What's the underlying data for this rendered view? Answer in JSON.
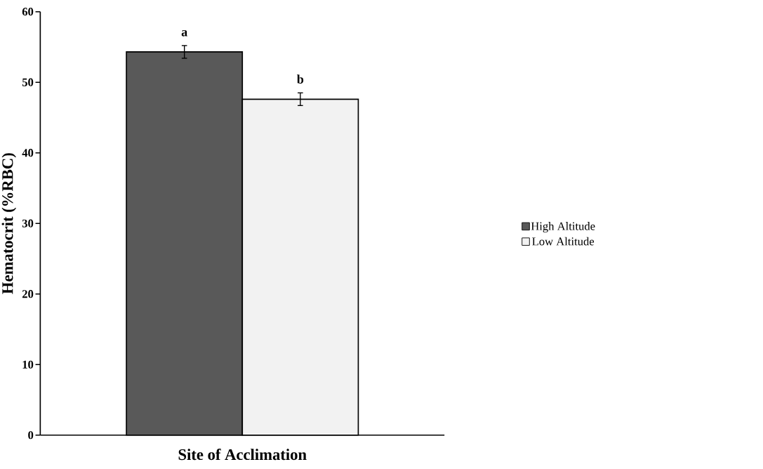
{
  "chart_data": {
    "type": "bar",
    "xlabel": "Site of Acclimation",
    "ylabel": "Hematocrit (%RBC)",
    "categories": [
      null
    ],
    "series": [
      {
        "name": "High Altitude",
        "color": "#595959",
        "values": [
          54.3
        ],
        "errors": [
          0.9
        ]
      },
      {
        "name": "Low Altitude",
        "color": "#f2f2f2",
        "values": [
          47.6
        ],
        "errors": [
          0.9
        ]
      }
    ],
    "annotations": [
      "a",
      "b"
    ],
    "ylim": [
      0,
      60
    ],
    "yticks": [
      0,
      10,
      20,
      30,
      40,
      50,
      60
    ],
    "grid": false,
    "legend": "right"
  }
}
